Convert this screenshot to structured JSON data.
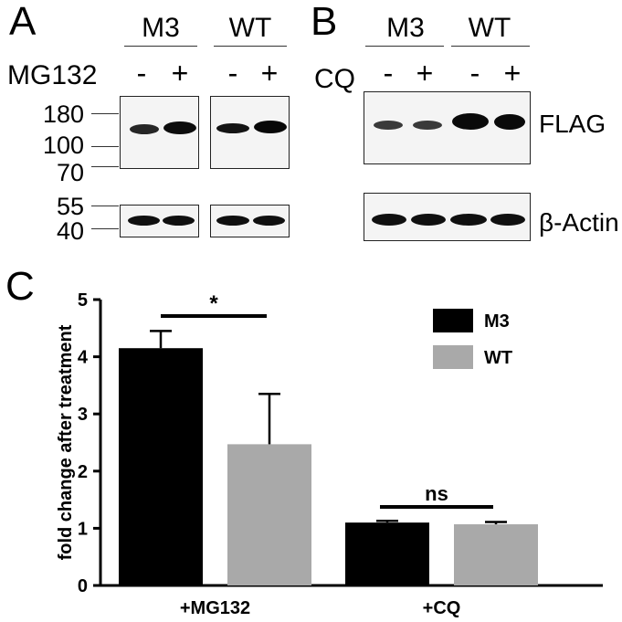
{
  "panels": {
    "a": "A",
    "b": "B",
    "c": "C"
  },
  "panel_a": {
    "groups": [
      "M3",
      "WT"
    ],
    "treatment_label": "MG132",
    "treatment_signs": [
      "-",
      "+",
      "-",
      "+"
    ],
    "mw_markers": [
      "180",
      "100",
      "70",
      "55",
      "40"
    ]
  },
  "panel_b": {
    "groups": [
      "M3",
      "WT"
    ],
    "treatment_label": "CQ",
    "treatment_signs": [
      "-",
      "+",
      "-",
      "+"
    ],
    "blot_labels": [
      "FLAG",
      "β-Actin"
    ]
  },
  "chart_data": {
    "type": "bar",
    "categories": [
      "+MG132",
      "+CQ"
    ],
    "series": [
      {
        "name": "M3",
        "values": [
          4.15,
          1.1
        ],
        "error": [
          0.3,
          0.03
        ],
        "color": "#000000"
      },
      {
        "name": "WT",
        "values": [
          2.47,
          1.07
        ],
        "error": [
          0.88,
          0.04
        ],
        "color": "#a9a9a9"
      }
    ],
    "ylabel": "fold change after treatment",
    "xlabel": "",
    "ylim": [
      0,
      5
    ],
    "yticks": [
      "0",
      "1",
      "2",
      "3",
      "4",
      "5"
    ],
    "significance": [
      "*",
      "ns"
    ],
    "legend_position": "top-right"
  }
}
